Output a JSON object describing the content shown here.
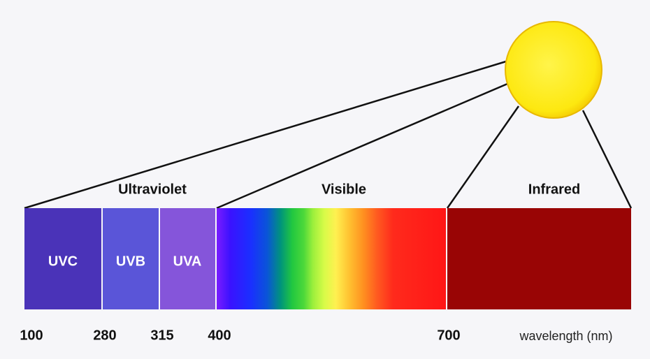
{
  "regions": [
    {
      "label": "Ultraviolet"
    },
    {
      "label": "Visible"
    },
    {
      "label": "Infrared"
    }
  ],
  "bands": [
    {
      "label": "UVC"
    },
    {
      "label": "UVB"
    },
    {
      "label": "UVA"
    }
  ],
  "wavelength_axis": {
    "labels": [
      "100",
      "280",
      "315",
      "400",
      "700"
    ],
    "title": "wavelength (nm)"
  }
}
